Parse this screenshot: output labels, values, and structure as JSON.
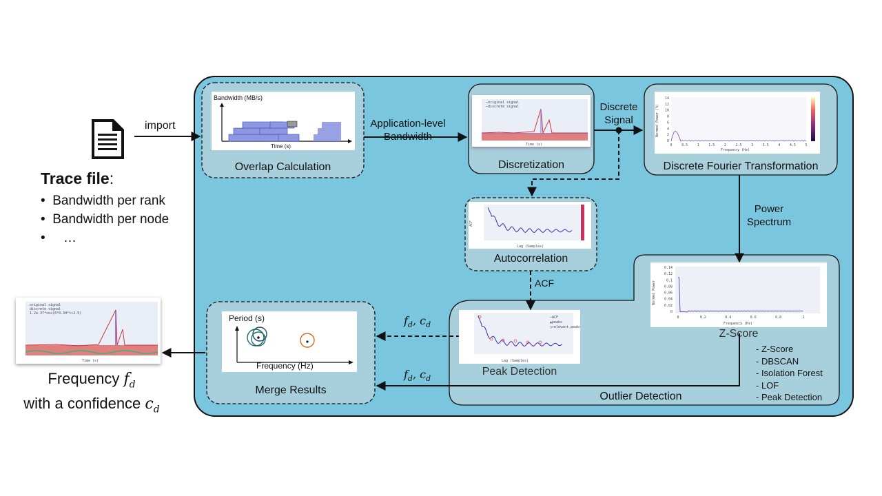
{
  "input": {
    "import_label": "import",
    "trace_title": "Trace file",
    "trace_colon": ":",
    "trace_items": [
      "Bandwidth  per rank",
      "Bandwidth  per node",
      "…"
    ]
  },
  "nodes": {
    "overlap": {
      "label": "Overlap Calculation",
      "chart_ylabel": "Bandwidth  (MB/s)",
      "chart_xlabel": "Time (s)"
    },
    "discretization": {
      "label": "Discretization"
    },
    "dft": {
      "label": "Discrete Fourier Transformation",
      "ylabel": "Normed Power (%)",
      "xlabel": "Frequency (Hz)",
      "xticks": [
        "0",
        "0.5",
        "1",
        "1.5",
        "2",
        "2.5",
        "3",
        "3.5",
        "4",
        "4.5",
        "5"
      ],
      "yticks": [
        "14",
        "12",
        "10",
        "8",
        "6",
        "4",
        "2",
        "0"
      ]
    },
    "autocorrelation": {
      "label": "Autocorrelation",
      "ylabel": "ACF",
      "xlabel": "Lag (Samples)",
      "xticks": [
        "0",
        "500",
        "1000",
        "1500",
        "2000"
      ]
    },
    "peak_detection": {
      "label": "Peak Detection",
      "legend": [
        "ACF",
        "peaks",
        "relevant peaks"
      ],
      "xlabel": "Lag (Samples)",
      "xticks": [
        "0",
        "500",
        "1000",
        "1500",
        "2000"
      ]
    },
    "zscore": {
      "label": "Z-Score",
      "ylabel": "Normed Power",
      "xlabel": "Frequency (Hz)",
      "xticks": [
        "0",
        "0.2",
        "0.4",
        "0.6",
        "0.8",
        "1"
      ],
      "yticks": [
        "0.14",
        "0.12",
        "0.1",
        "0.08",
        "0.06",
        "0.04",
        "0.02",
        "0"
      ]
    },
    "merge": {
      "label": "Merge Results",
      "ylabel": "Period (s)",
      "xlabel": "Frequency (Hz)"
    },
    "outlier": {
      "label": "Outlier Detection",
      "methods": [
        "- Z-Score",
        "- DBSCAN",
        "- Isolation Forest",
        "- LOF",
        "- Peak Detection"
      ]
    }
  },
  "edges": {
    "app_bw_line1": "Application-level",
    "app_bw_line2": "Bandwidth",
    "discrete_line1": "Discrete",
    "discrete_line2": "Signal",
    "power_line1": "Power",
    "power_line2": "Spectrum",
    "acf": "ACF",
    "fd_cd_1": "fₐ, cₐ",
    "fd_cd_2": "fₐ, cₐ"
  },
  "output": {
    "line1": "Frequency ",
    "line1_sym": "f",
    "line1_sub": "d",
    "line2": "with a confidence ",
    "line2_sym": "c",
    "line2_sub": "d",
    "legend": [
      "original signal",
      "discrete signal",
      "1.2e-37*cos(6*0.34*t+2.5)"
    ]
  },
  "colors": {
    "panel": "#7ac6df",
    "subpanel": "#a7cfdc",
    "bar": "#8e97e3",
    "signal": "#d9534f",
    "purple": "#7d4fb5"
  }
}
